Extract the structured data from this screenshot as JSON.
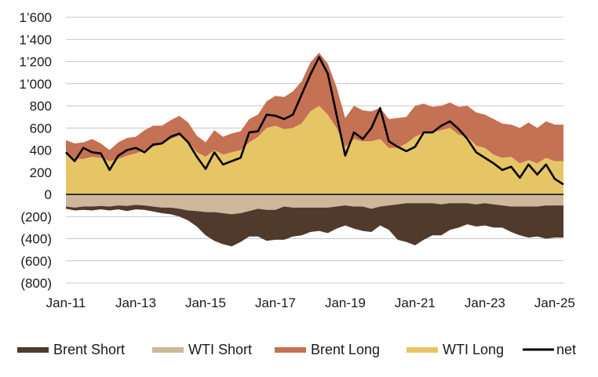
{
  "chart_data": {
    "type": "area",
    "title": "",
    "xlabel": "",
    "ylabel": "",
    "ylim": [
      -800,
      1600
    ],
    "y_ticks": [
      {
        "value": 1600,
        "label": "1’600"
      },
      {
        "value": 1400,
        "label": "1’400"
      },
      {
        "value": 1200,
        "label": "1’200"
      },
      {
        "value": 1000,
        "label": "1’000"
      },
      {
        "value": 800,
        "label": "800"
      },
      {
        "value": 600,
        "label": "600"
      },
      {
        "value": 400,
        "label": "400"
      },
      {
        "value": 200,
        "label": "200"
      },
      {
        "value": 0,
        "label": "0"
      },
      {
        "value": -200,
        "label": "(200)"
      },
      {
        "value": -400,
        "label": "(400)"
      },
      {
        "value": -600,
        "label": "(600)"
      },
      {
        "value": -800,
        "label": "(800)"
      }
    ],
    "x_ticks": [
      {
        "value": 2011.0,
        "label": "Jan-11"
      },
      {
        "value": 2013.0,
        "label": "Jan-13"
      },
      {
        "value": 2015.0,
        "label": "Jan-15"
      },
      {
        "value": 2017.0,
        "label": "Jan-17"
      },
      {
        "value": 2019.0,
        "label": "Jan-19"
      },
      {
        "value": 2021.0,
        "label": "Jan-21"
      },
      {
        "value": 2023.0,
        "label": "Jan-23"
      },
      {
        "value": 2025.0,
        "label": "Jan-25"
      }
    ],
    "xlim": [
      2011.0,
      2025.25
    ],
    "grid": true,
    "legend_position": "bottom",
    "x": [
      2011.0,
      2011.25,
      2011.5,
      2011.75,
      2012.0,
      2012.25,
      2012.5,
      2012.75,
      2013.0,
      2013.25,
      2013.5,
      2013.75,
      2014.0,
      2014.25,
      2014.5,
      2014.75,
      2015.0,
      2015.25,
      2015.5,
      2015.75,
      2016.0,
      2016.25,
      2016.5,
      2016.75,
      2017.0,
      2017.25,
      2017.5,
      2017.75,
      2018.0,
      2018.25,
      2018.5,
      2018.75,
      2019.0,
      2019.25,
      2019.5,
      2019.75,
      2020.0,
      2020.25,
      2020.5,
      2020.75,
      2021.0,
      2021.25,
      2021.5,
      2021.75,
      2022.0,
      2022.25,
      2022.5,
      2022.75,
      2023.0,
      2023.25,
      2023.5,
      2023.75,
      2024.0,
      2024.25,
      2024.5,
      2024.75,
      2025.0,
      2025.25
    ],
    "series": [
      {
        "name": "Brent Short",
        "color": "#4f3a2c",
        "values": [
          -20,
          -25,
          -30,
          -35,
          -30,
          -35,
          -35,
          -45,
          -40,
          -40,
          -45,
          -50,
          -60,
          -70,
          -90,
          -140,
          -210,
          -260,
          -280,
          -290,
          -260,
          -230,
          -250,
          -280,
          -270,
          -300,
          -260,
          -250,
          -220,
          -210,
          -230,
          -200,
          -180,
          -200,
          -220,
          -210,
          -170,
          -220,
          -320,
          -350,
          -380,
          -330,
          -290,
          -280,
          -240,
          -220,
          -190,
          -200,
          -200,
          -210,
          -200,
          -230,
          -260,
          -280,
          -270,
          -300,
          -290,
          -290
        ]
      },
      {
        "name": "WTI Short",
        "color": "#cdb89b",
        "values": [
          -110,
          -120,
          -110,
          -110,
          -105,
          -110,
          -100,
          -105,
          -95,
          -100,
          -110,
          -120,
          -120,
          -130,
          -145,
          -150,
          -160,
          -160,
          -170,
          -180,
          -170,
          -150,
          -130,
          -140,
          -140,
          -110,
          -120,
          -120,
          -120,
          -120,
          -120,
          -110,
          -100,
          -110,
          -110,
          -130,
          -110,
          -100,
          -90,
          -80,
          -80,
          -80,
          -80,
          -90,
          -80,
          -80,
          -80,
          -90,
          -80,
          -90,
          -100,
          -110,
          -110,
          -110,
          -110,
          -100,
          -100,
          -100
        ]
      },
      {
        "name": "Brent Long",
        "color": "#c57154",
        "values": [
          130,
          140,
          150,
          160,
          130,
          100,
          150,
          160,
          150,
          180,
          190,
          170,
          170,
          180,
          170,
          150,
          130,
          180,
          160,
          170,
          170,
          210,
          200,
          240,
          270,
          290,
          330,
          380,
          440,
          480,
          460,
          370,
          260,
          300,
          280,
          270,
          280,
          260,
          270,
          240,
          280,
          260,
          230,
          220,
          230,
          250,
          280,
          300,
          300,
          320,
          310,
          290,
          320,
          340,
          320,
          330,
          330,
          330
        ]
      },
      {
        "name": "WTI Long",
        "color": "#e6c565",
        "values": [
          360,
          320,
          320,
          340,
          330,
          300,
          320,
          350,
          370,
          400,
          430,
          450,
          500,
          530,
          480,
          380,
          340,
          400,
          360,
          380,
          400,
          470,
          520,
          600,
          620,
          590,
          600,
          640,
          750,
          800,
          720,
          600,
          430,
          500,
          480,
          480,
          500,
          420,
          420,
          460,
          520,
          560,
          560,
          580,
          600,
          540,
          520,
          440,
          420,
          360,
          330,
          340,
          280,
          310,
          280,
          330,
          300,
          300
        ]
      },
      {
        "name": "net",
        "color": "#000000",
        "values": [
          380,
          300,
          420,
          380,
          370,
          220,
          350,
          400,
          420,
          380,
          450,
          460,
          520,
          550,
          470,
          340,
          230,
          380,
          270,
          300,
          330,
          560,
          570,
          720,
          710,
          680,
          720,
          900,
          1080,
          1240,
          1090,
          720,
          350,
          560,
          500,
          600,
          780,
          480,
          430,
          390,
          430,
          560,
          560,
          620,
          660,
          590,
          500,
          380,
          330,
          280,
          220,
          250,
          150,
          270,
          180,
          270,
          140,
          90
        ]
      }
    ]
  }
}
